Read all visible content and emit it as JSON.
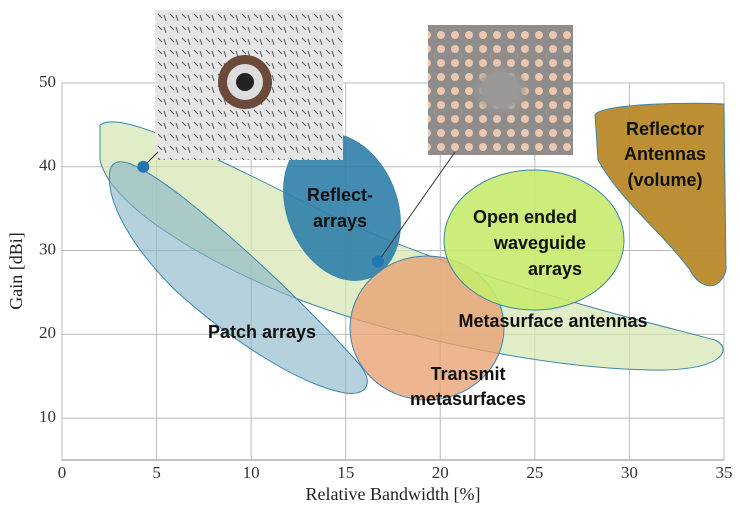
{
  "chart_data": {
    "type": "scatter",
    "xlabel": "Relative Bandwidth [%]",
    "ylabel": "Gain [dBi]",
    "xlim": [
      0,
      35
    ],
    "xticks": [
      0,
      5,
      10,
      15,
      20,
      25,
      30,
      35
    ],
    "ylim": [
      5,
      50
    ],
    "yticks": [
      10,
      20,
      30,
      40,
      50
    ],
    "grid": true,
    "series": [
      {
        "color": "#1f78b0",
        "x": [
          4.3,
          16.7
        ],
        "values": [
          40,
          28.7
        ]
      }
    ],
    "regions": [
      {
        "label": [
          "Metasurface  antennas"
        ],
        "color": "#d6e7b4"
      },
      {
        "label": [
          "Patch arrays"
        ],
        "color": "#86b2c8"
      },
      {
        "label": [
          "Reflect-",
          "arrays"
        ],
        "color": "#2f7ea8"
      },
      {
        "label": [
          "Transmit",
          "metasurfaces"
        ],
        "color": "#e8a272"
      },
      {
        "label": [
          "Open ended",
          "waveguide",
          "arrays"
        ],
        "color": "#c6ea6e"
      },
      {
        "label": [
          "Reflector",
          "Antennas",
          "(volume)"
        ],
        "color": "#b8892a"
      }
    ]
  }
}
